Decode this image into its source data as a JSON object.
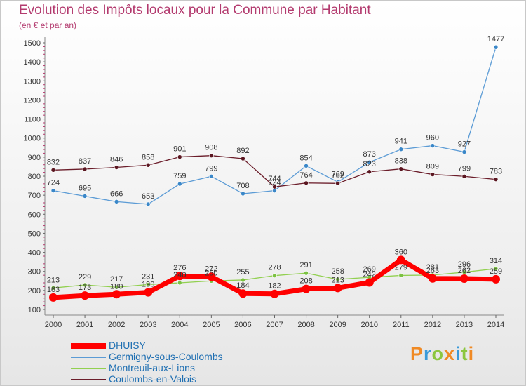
{
  "title": "Evolution des Impôts locaux pour la Commune par Habitant",
  "subtitle": "(en € et par an)",
  "logo": {
    "text": "Proxiti",
    "colors": [
      "#f08a24",
      "#3a9ad9",
      "#8cc63f",
      "#f08a24",
      "#3a9ad9",
      "#8cc63f",
      "#f08a24"
    ]
  },
  "chart_data": {
    "type": "line",
    "title": "Evolution des Impôts locaux pour la Commune par Habitant",
    "subtitle": "(en € et par an)",
    "x": [
      "2000",
      "2001",
      "2002",
      "2003",
      "2004",
      "2005",
      "2006",
      "2007",
      "2008",
      "2009",
      "2010",
      "2011",
      "2012",
      "2013",
      "2014"
    ],
    "ylim": [
      100,
      1500
    ],
    "yticks": [
      100,
      200,
      300,
      400,
      500,
      600,
      700,
      800,
      900,
      1000,
      1100,
      1200,
      1300,
      1400,
      1500
    ],
    "grid": false,
    "legend_position": "bottom-left",
    "series": [
      {
        "name": "DHUISY",
        "color": "#ff0000",
        "width": 7,
        "values": [
          163,
          173,
          180,
          190,
          276,
          272,
          184,
          182,
          208,
          213,
          242,
          360,
          263,
          262,
          259
        ]
      },
      {
        "name": "Germigny-sous-Coulombs",
        "color": "#5b9bd5",
        "width": 1.3,
        "values": [
          724,
          695,
          666,
          653,
          759,
          799,
          708,
          724,
          854,
          769,
          873,
          941,
          960,
          927,
          1477
        ]
      },
      {
        "name": "Montreuil-aux-Lions",
        "color": "#92d050",
        "width": 1.3,
        "values": [
          213,
          229,
          217,
          231,
          240,
          250,
          255,
          278,
          291,
          258,
          269,
          279,
          281,
          296,
          314
        ]
      },
      {
        "name": "Coulombs-en-Valois",
        "color": "#6b1d2a",
        "width": 1.3,
        "values": [
          832,
          837,
          846,
          858,
          901,
          908,
          892,
          744,
          764,
          762,
          823,
          838,
          809,
          799,
          783
        ]
      }
    ],
    "data_labels": {
      "DHUISY": [
        "163",
        "173",
        "180",
        "190",
        "276",
        "272",
        "184",
        "182",
        "208",
        "213",
        "242",
        "360",
        "263",
        "262",
        "259"
      ],
      "Germigny-sous-Coulombs": [
        "724",
        "695",
        "666",
        "653",
        "759",
        "799",
        "708",
        "724",
        "854",
        "769",
        "873",
        "941",
        "960",
        "927",
        "1477"
      ],
      "Montreuil-aux-Lions": [
        "213",
        "229",
        "217",
        "231",
        "240",
        "250",
        "255",
        "278",
        "291",
        "258",
        "269",
        "279",
        "281",
        "296",
        "314"
      ],
      "Coulombs-en-Valois": [
        "832",
        "837",
        "846",
        "858",
        "901",
        "908",
        "892",
        "744",
        "764",
        "762",
        "823",
        "838",
        "809",
        "799",
        "783"
      ]
    }
  }
}
